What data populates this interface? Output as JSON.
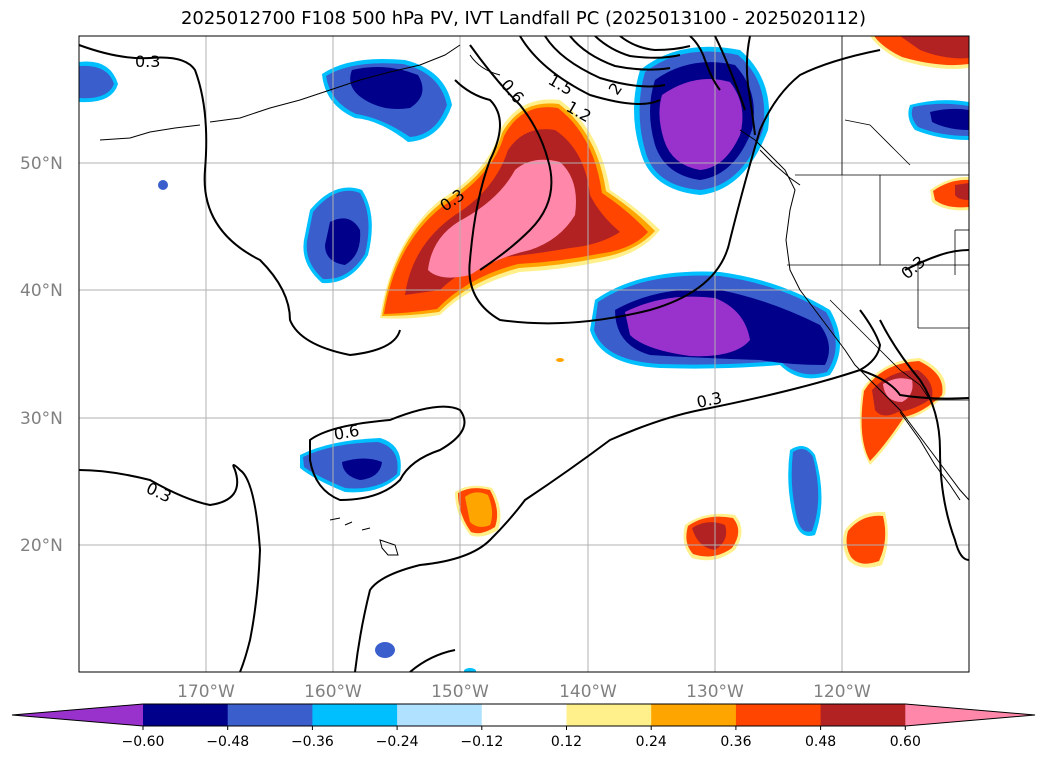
{
  "title": "2025012700 F108 500 hPa PV, IVT Landfall PC (2025013100 - 2025020112)",
  "lat_labels": [
    "50°N",
    "40°N",
    "30°N",
    "20°N"
  ],
  "lon_labels": [
    "170°W",
    "160°W",
    "150°W",
    "140°W",
    "130°W",
    "120°W"
  ],
  "colorbar": {
    "ticks": [
      "−0.60",
      "−0.48",
      "−0.36",
      "−0.24",
      "−0.12",
      "0.12",
      "0.24",
      "0.36",
      "0.48",
      "0.60"
    ],
    "colors": [
      "#9932cc",
      "#00008b",
      "#3a5fcd",
      "#00bfff",
      "#b0e2ff",
      "#ffffff",
      "#fff08c",
      "#ffa500",
      "#ff4500",
      "#b22222",
      "#ff88aa"
    ]
  },
  "contour_labels": [
    "0.3",
    "0.6",
    "1.5",
    "1.2",
    "2",
    "0.3",
    "0.3",
    "0.6",
    "0.3",
    "0.3"
  ],
  "colors": {
    "neg_light": "#b0e2ff",
    "neg_sky": "#00bfff",
    "neg_blue": "#3a5fcd",
    "neg_navy": "#00008b",
    "neg_purple": "#9932cc",
    "pos_yellow": "#fff08c",
    "pos_orange": "#ffa500",
    "pos_redorange": "#ff4500",
    "pos_firebrick": "#b22222",
    "pos_pink": "#ff88aa"
  }
}
